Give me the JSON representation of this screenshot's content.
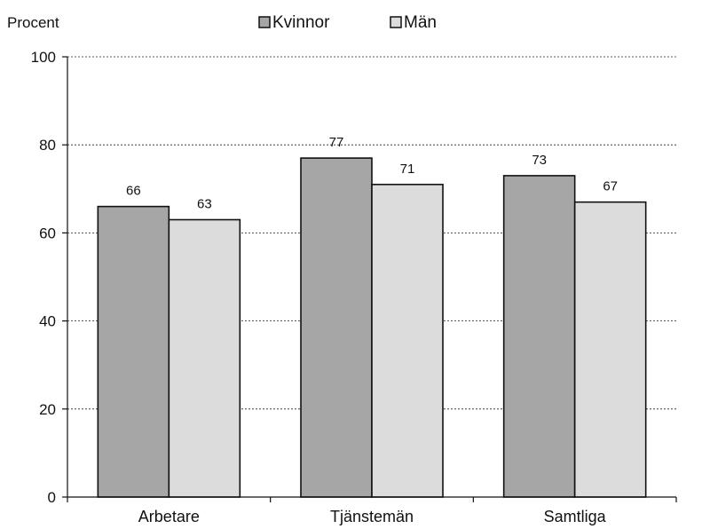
{
  "chart_data": {
    "type": "bar",
    "ylabel": "Procent",
    "xlabel": "",
    "ylim": [
      0,
      100
    ],
    "yticks": [
      0,
      20,
      40,
      60,
      80,
      100
    ],
    "grid": true,
    "legend_position": "top",
    "categories": [
      "Arbetare",
      "Tjänstemän",
      "Samtliga"
    ],
    "series": [
      {
        "name": "Kvinnor",
        "values": [
          66,
          77,
          73
        ],
        "color": "#a6a6a6"
      },
      {
        "name": "Män",
        "values": [
          63,
          71,
          67
        ],
        "color": "#dcdcdc"
      }
    ],
    "data_labels": [
      [
        "66",
        "77",
        "73"
      ],
      [
        "63",
        "71",
        "67"
      ]
    ]
  }
}
